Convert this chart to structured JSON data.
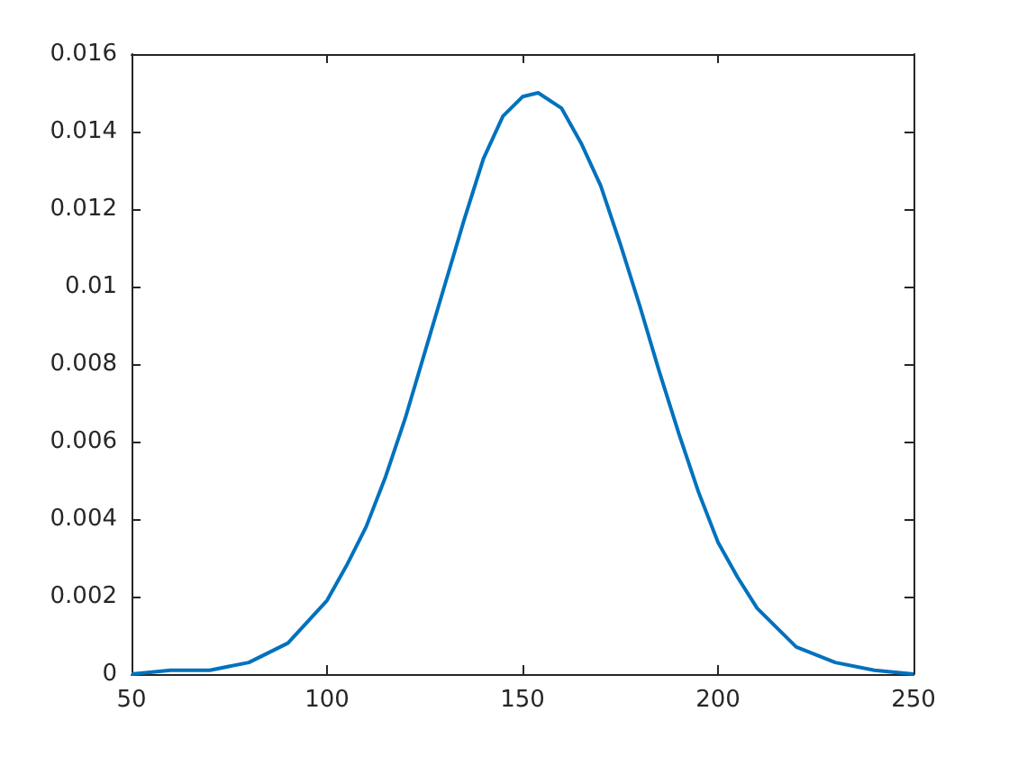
{
  "chart_data": {
    "type": "line",
    "x": [
      50,
      60,
      70,
      80,
      90,
      100,
      105,
      110,
      115,
      120,
      125,
      130,
      135,
      140,
      145,
      150,
      154,
      160,
      165,
      170,
      175,
      180,
      185,
      190,
      195,
      200,
      205,
      210,
      220,
      230,
      240,
      250
    ],
    "series": [
      {
        "color": "#0072bd",
        "values": [
          0,
          0.0001,
          0.0001,
          0.0003,
          0.0008,
          0.0019,
          0.0028,
          0.0038,
          0.0051,
          0.0066,
          0.0083,
          0.01,
          0.0117,
          0.0133,
          0.0144,
          0.0149,
          0.015,
          0.0146,
          0.0137,
          0.0126,
          0.0111,
          0.0095,
          0.0078,
          0.0062,
          0.0047,
          0.0034,
          0.0025,
          0.0017,
          0.0007,
          0.0003,
          0.0001,
          0
        ]
      }
    ],
    "xlim": [
      50,
      250
    ],
    "xticks": [
      50,
      100,
      150,
      200,
      250
    ],
    "ylim": [
      0,
      0.016
    ],
    "yticks": [
      0,
      0.002,
      0.004,
      0.006,
      0.008,
      0.01,
      0.012,
      0.014,
      0.016
    ],
    "grid": false,
    "marker": "none",
    "line_style": "solid"
  }
}
